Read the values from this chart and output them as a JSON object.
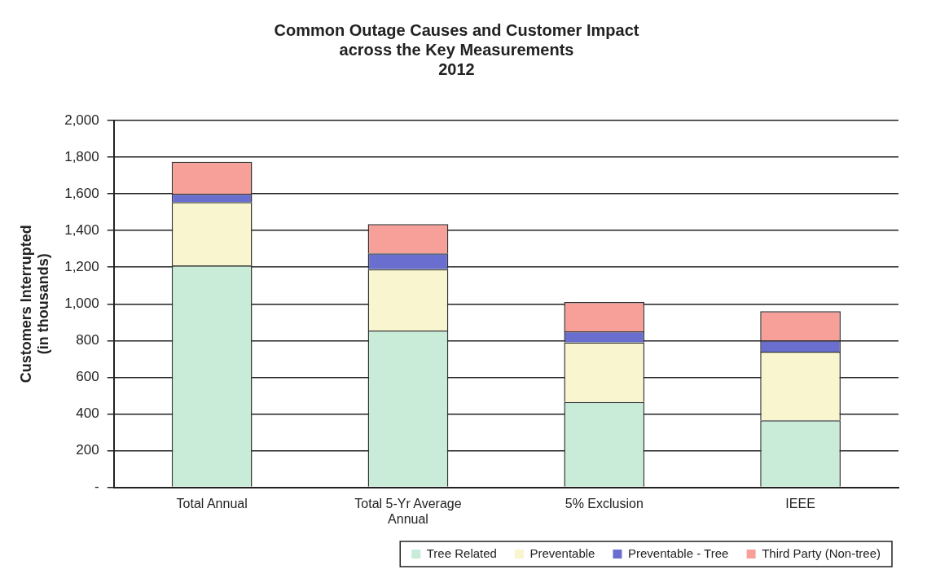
{
  "chart_data": {
    "type": "bar",
    "title": "Common Outage Causes and Customer Impact\nacross the Key Measurements\n2012",
    "ylabel": "Customers Interrupted\n(in thousands)",
    "categories": [
      "Total Annual",
      "Total 5-Yr Average Annual",
      "5% Exclusion",
      "IEEE"
    ],
    "stacked": true,
    "series": [
      {
        "name": "Tree Related",
        "color": "#c8ecd8",
        "values": [
          1210,
          855,
          465,
          365
        ]
      },
      {
        "name": "Preventable",
        "color": "#f9f6cf",
        "values": [
          345,
          335,
          325,
          375
        ]
      },
      {
        "name": "Preventable - Tree",
        "color": "#6a6fcf",
        "values": [
          45,
          85,
          60,
          60
        ]
      },
      {
        "name": "Third Party (Non-tree)",
        "color": "#f7a09a",
        "values": [
          175,
          160,
          160,
          160
        ]
      }
    ],
    "ylim": [
      0,
      2000
    ],
    "yticks": [
      {
        "value": 0,
        "label": "-"
      },
      {
        "value": 200,
        "label": "200"
      },
      {
        "value": 400,
        "label": "400"
      },
      {
        "value": 600,
        "label": "600"
      },
      {
        "value": 800,
        "label": "800"
      },
      {
        "value": 1000,
        "label": "1,000"
      },
      {
        "value": 1200,
        "label": "1,200"
      },
      {
        "value": 1400,
        "label": "1,400"
      },
      {
        "value": 1600,
        "label": "1,600"
      },
      {
        "value": 1800,
        "label": "1,800"
      },
      {
        "value": 2000,
        "label": "2,000"
      }
    ],
    "grid": "y",
    "legend": "bottom right"
  }
}
